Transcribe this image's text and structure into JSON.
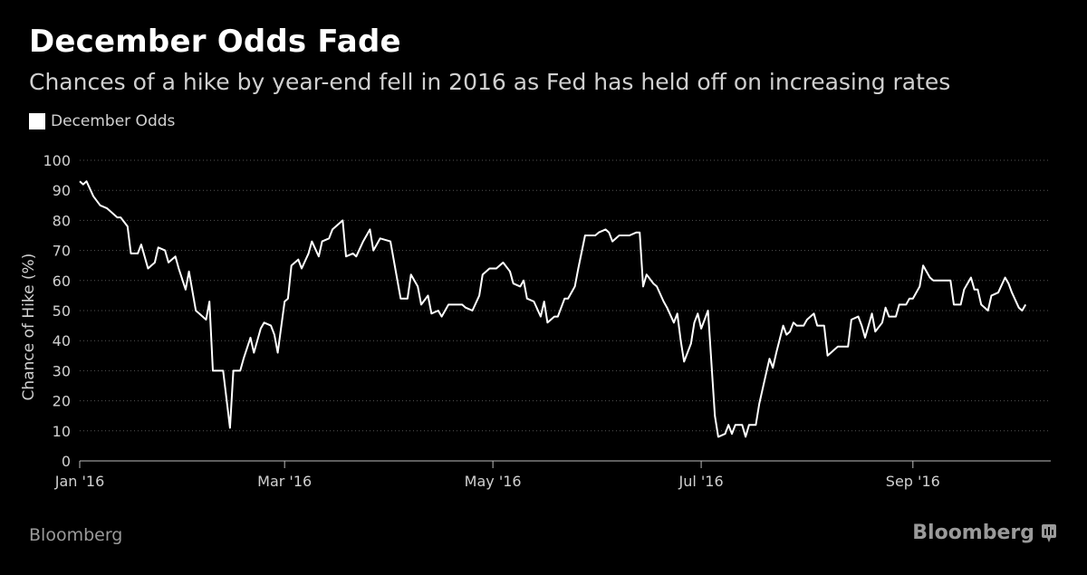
{
  "header": {
    "title": "December Odds Fade",
    "subtitle": "Chances of a hike by year-end fell in 2016 as Fed has held off on increasing rates"
  },
  "footer": {
    "source": "Bloomberg",
    "brand": "Bloomberg"
  },
  "colors": {
    "background": "#000000",
    "line": "#ffffff",
    "grid": "#555555",
    "text": "#d0d0d0",
    "footer_text": "#9a9a9a"
  },
  "chart_data": {
    "type": "line",
    "title": "December Odds Fade",
    "subtitle": "Chances of a hike by year-end fell in 2016 as Fed has held off on increasing rates",
    "xlabel": "",
    "ylabel": "Chance of Hike (%)",
    "ylim": [
      0,
      100
    ],
    "yticks": [
      0,
      10,
      20,
      30,
      40,
      50,
      60,
      70,
      80,
      90,
      100
    ],
    "xlim": [
      "2016-01-01",
      "2016-09-30"
    ],
    "xticks": [
      {
        "date": "2016-01-01",
        "label": "Jan '16"
      },
      {
        "date": "2016-03-01",
        "label": "Mar '16"
      },
      {
        "date": "2016-05-01",
        "label": "May '16"
      },
      {
        "date": "2016-07-01",
        "label": "Jul '16"
      },
      {
        "date": "2016-09-01",
        "label": "Sep '16"
      }
    ],
    "grid": true,
    "legend": "top-left",
    "series": [
      {
        "name": "December Odds",
        "points": [
          [
            "2016-01-01",
            93
          ],
          [
            "2016-01-02",
            92
          ],
          [
            "2016-01-03",
            93
          ],
          [
            "2016-01-05",
            88
          ],
          [
            "2016-01-07",
            85
          ],
          [
            "2016-01-09",
            84
          ],
          [
            "2016-01-10",
            83
          ],
          [
            "2016-01-12",
            81
          ],
          [
            "2016-01-13",
            81
          ],
          [
            "2016-01-15",
            78
          ],
          [
            "2016-01-16",
            69
          ],
          [
            "2016-01-18",
            69
          ],
          [
            "2016-01-19",
            72
          ],
          [
            "2016-01-21",
            64
          ],
          [
            "2016-01-23",
            66
          ],
          [
            "2016-01-24",
            71
          ],
          [
            "2016-01-26",
            70
          ],
          [
            "2016-01-27",
            66
          ],
          [
            "2016-01-29",
            68
          ],
          [
            "2016-01-30",
            64
          ],
          [
            "2016-02-01",
            57
          ],
          [
            "2016-02-02",
            63
          ],
          [
            "2016-02-04",
            50
          ],
          [
            "2016-02-05",
            49
          ],
          [
            "2016-02-07",
            47
          ],
          [
            "2016-02-08",
            53
          ],
          [
            "2016-02-09",
            30
          ],
          [
            "2016-02-12",
            30
          ],
          [
            "2016-02-14",
            11
          ],
          [
            "2016-02-15",
            30
          ],
          [
            "2016-02-17",
            30
          ],
          [
            "2016-02-18",
            34
          ],
          [
            "2016-02-20",
            41
          ],
          [
            "2016-02-21",
            36
          ],
          [
            "2016-02-23",
            44
          ],
          [
            "2016-02-24",
            46
          ],
          [
            "2016-02-26",
            45
          ],
          [
            "2016-02-27",
            42
          ],
          [
            "2016-02-28",
            36
          ],
          [
            "2016-03-01",
            53
          ],
          [
            "2016-03-02",
            54
          ],
          [
            "2016-03-03",
            65
          ],
          [
            "2016-03-05",
            67
          ],
          [
            "2016-03-06",
            64
          ],
          [
            "2016-03-08",
            69
          ],
          [
            "2016-03-09",
            73
          ],
          [
            "2016-03-11",
            68
          ],
          [
            "2016-03-12",
            73
          ],
          [
            "2016-03-14",
            74
          ],
          [
            "2016-03-15",
            77
          ],
          [
            "2016-03-17",
            79
          ],
          [
            "2016-03-18",
            80
          ],
          [
            "2016-03-19",
            68
          ],
          [
            "2016-03-21",
            69
          ],
          [
            "2016-03-22",
            68
          ],
          [
            "2016-03-24",
            73
          ],
          [
            "2016-03-26",
            77
          ],
          [
            "2016-03-27",
            70
          ],
          [
            "2016-03-29",
            74
          ],
          [
            "2016-04-01",
            73
          ],
          [
            "2016-04-04",
            54
          ],
          [
            "2016-04-06",
            54
          ],
          [
            "2016-04-07",
            62
          ],
          [
            "2016-04-09",
            58
          ],
          [
            "2016-04-10",
            52
          ],
          [
            "2016-04-12",
            55
          ],
          [
            "2016-04-13",
            49
          ],
          [
            "2016-04-15",
            50
          ],
          [
            "2016-04-16",
            48
          ],
          [
            "2016-04-18",
            52
          ],
          [
            "2016-04-20",
            52
          ],
          [
            "2016-04-22",
            52
          ],
          [
            "2016-04-23",
            51
          ],
          [
            "2016-04-25",
            50
          ],
          [
            "2016-04-27",
            55
          ],
          [
            "2016-04-28",
            62
          ],
          [
            "2016-04-30",
            64
          ],
          [
            "2016-05-02",
            64
          ],
          [
            "2016-05-04",
            66
          ],
          [
            "2016-05-06",
            63
          ],
          [
            "2016-05-07",
            59
          ],
          [
            "2016-05-09",
            58
          ],
          [
            "2016-05-10",
            60
          ],
          [
            "2016-05-11",
            54
          ],
          [
            "2016-05-13",
            53
          ],
          [
            "2016-05-15",
            48
          ],
          [
            "2016-05-16",
            53
          ],
          [
            "2016-05-17",
            46
          ],
          [
            "2016-05-19",
            48
          ],
          [
            "2016-05-20",
            48
          ],
          [
            "2016-05-22",
            54
          ],
          [
            "2016-05-23",
            54
          ],
          [
            "2016-05-25",
            58
          ],
          [
            "2016-05-26",
            64
          ],
          [
            "2016-05-28",
            75
          ],
          [
            "2016-05-29",
            75
          ],
          [
            "2016-05-31",
            75
          ],
          [
            "2016-06-01",
            76
          ],
          [
            "2016-06-03",
            77
          ],
          [
            "2016-06-04",
            76
          ],
          [
            "2016-06-05",
            73
          ],
          [
            "2016-06-07",
            75
          ],
          [
            "2016-06-09",
            75
          ],
          [
            "2016-06-10",
            75
          ],
          [
            "2016-06-12",
            76
          ],
          [
            "2016-06-13",
            76
          ],
          [
            "2016-06-14",
            58
          ],
          [
            "2016-06-15",
            62
          ],
          [
            "2016-06-17",
            59
          ],
          [
            "2016-06-18",
            58
          ],
          [
            "2016-06-20",
            53
          ],
          [
            "2016-06-21",
            51
          ],
          [
            "2016-06-23",
            46
          ],
          [
            "2016-06-24",
            49
          ],
          [
            "2016-06-25",
            40
          ],
          [
            "2016-06-26",
            33
          ],
          [
            "2016-06-28",
            39
          ],
          [
            "2016-06-29",
            46
          ],
          [
            "2016-06-30",
            49
          ],
          [
            "2016-07-01",
            44
          ],
          [
            "2016-07-03",
            50
          ],
          [
            "2016-07-05",
            15
          ],
          [
            "2016-07-06",
            8
          ],
          [
            "2016-07-08",
            9
          ],
          [
            "2016-07-09",
            12
          ],
          [
            "2016-07-10",
            9
          ],
          [
            "2016-07-11",
            12
          ],
          [
            "2016-07-13",
            12
          ],
          [
            "2016-07-14",
            8
          ],
          [
            "2016-07-15",
            12
          ],
          [
            "2016-07-17",
            12
          ],
          [
            "2016-07-18",
            19
          ],
          [
            "2016-07-20",
            29
          ],
          [
            "2016-07-21",
            34
          ],
          [
            "2016-07-22",
            31
          ],
          [
            "2016-07-23",
            36
          ],
          [
            "2016-07-25",
            45
          ],
          [
            "2016-07-26",
            42
          ],
          [
            "2016-07-27",
            43
          ],
          [
            "2016-07-28",
            46
          ],
          [
            "2016-07-29",
            45
          ],
          [
            "2016-07-31",
            45
          ],
          [
            "2016-08-01",
            47
          ],
          [
            "2016-08-03",
            49
          ],
          [
            "2016-08-04",
            45
          ],
          [
            "2016-08-06",
            45
          ],
          [
            "2016-08-07",
            35
          ],
          [
            "2016-08-08",
            36
          ],
          [
            "2016-08-10",
            38
          ],
          [
            "2016-08-11",
            38
          ],
          [
            "2016-08-13",
            38
          ],
          [
            "2016-08-14",
            47
          ],
          [
            "2016-08-16",
            48
          ],
          [
            "2016-08-17",
            45
          ],
          [
            "2016-08-18",
            41
          ],
          [
            "2016-08-20",
            49
          ],
          [
            "2016-08-21",
            43
          ],
          [
            "2016-08-23",
            46
          ],
          [
            "2016-08-24",
            51
          ],
          [
            "2016-08-25",
            48
          ],
          [
            "2016-08-27",
            48
          ],
          [
            "2016-08-28",
            52
          ],
          [
            "2016-08-30",
            52
          ],
          [
            "2016-08-31",
            54
          ],
          [
            "2016-09-01",
            54
          ],
          [
            "2016-09-03",
            58
          ],
          [
            "2016-09-04",
            65
          ],
          [
            "2016-09-06",
            61
          ],
          [
            "2016-09-07",
            60
          ],
          [
            "2016-09-09",
            60
          ],
          [
            "2016-09-11",
            60
          ],
          [
            "2016-09-12",
            60
          ],
          [
            "2016-09-13",
            52
          ],
          [
            "2016-09-15",
            52
          ],
          [
            "2016-09-16",
            57
          ],
          [
            "2016-09-18",
            61
          ],
          [
            "2016-09-19",
            57
          ],
          [
            "2016-09-20",
            57
          ],
          [
            "2016-09-21",
            52
          ],
          [
            "2016-09-23",
            50
          ],
          [
            "2016-09-24",
            55
          ],
          [
            "2016-09-26",
            56
          ],
          [
            "2016-09-28",
            61
          ],
          [
            "2016-09-29",
            59
          ],
          [
            "2016-09-30",
            56
          ],
          [
            "2016-10-02",
            51
          ],
          [
            "2016-10-03",
            50
          ],
          [
            "2016-10-04",
            52
          ]
        ]
      }
    ]
  }
}
